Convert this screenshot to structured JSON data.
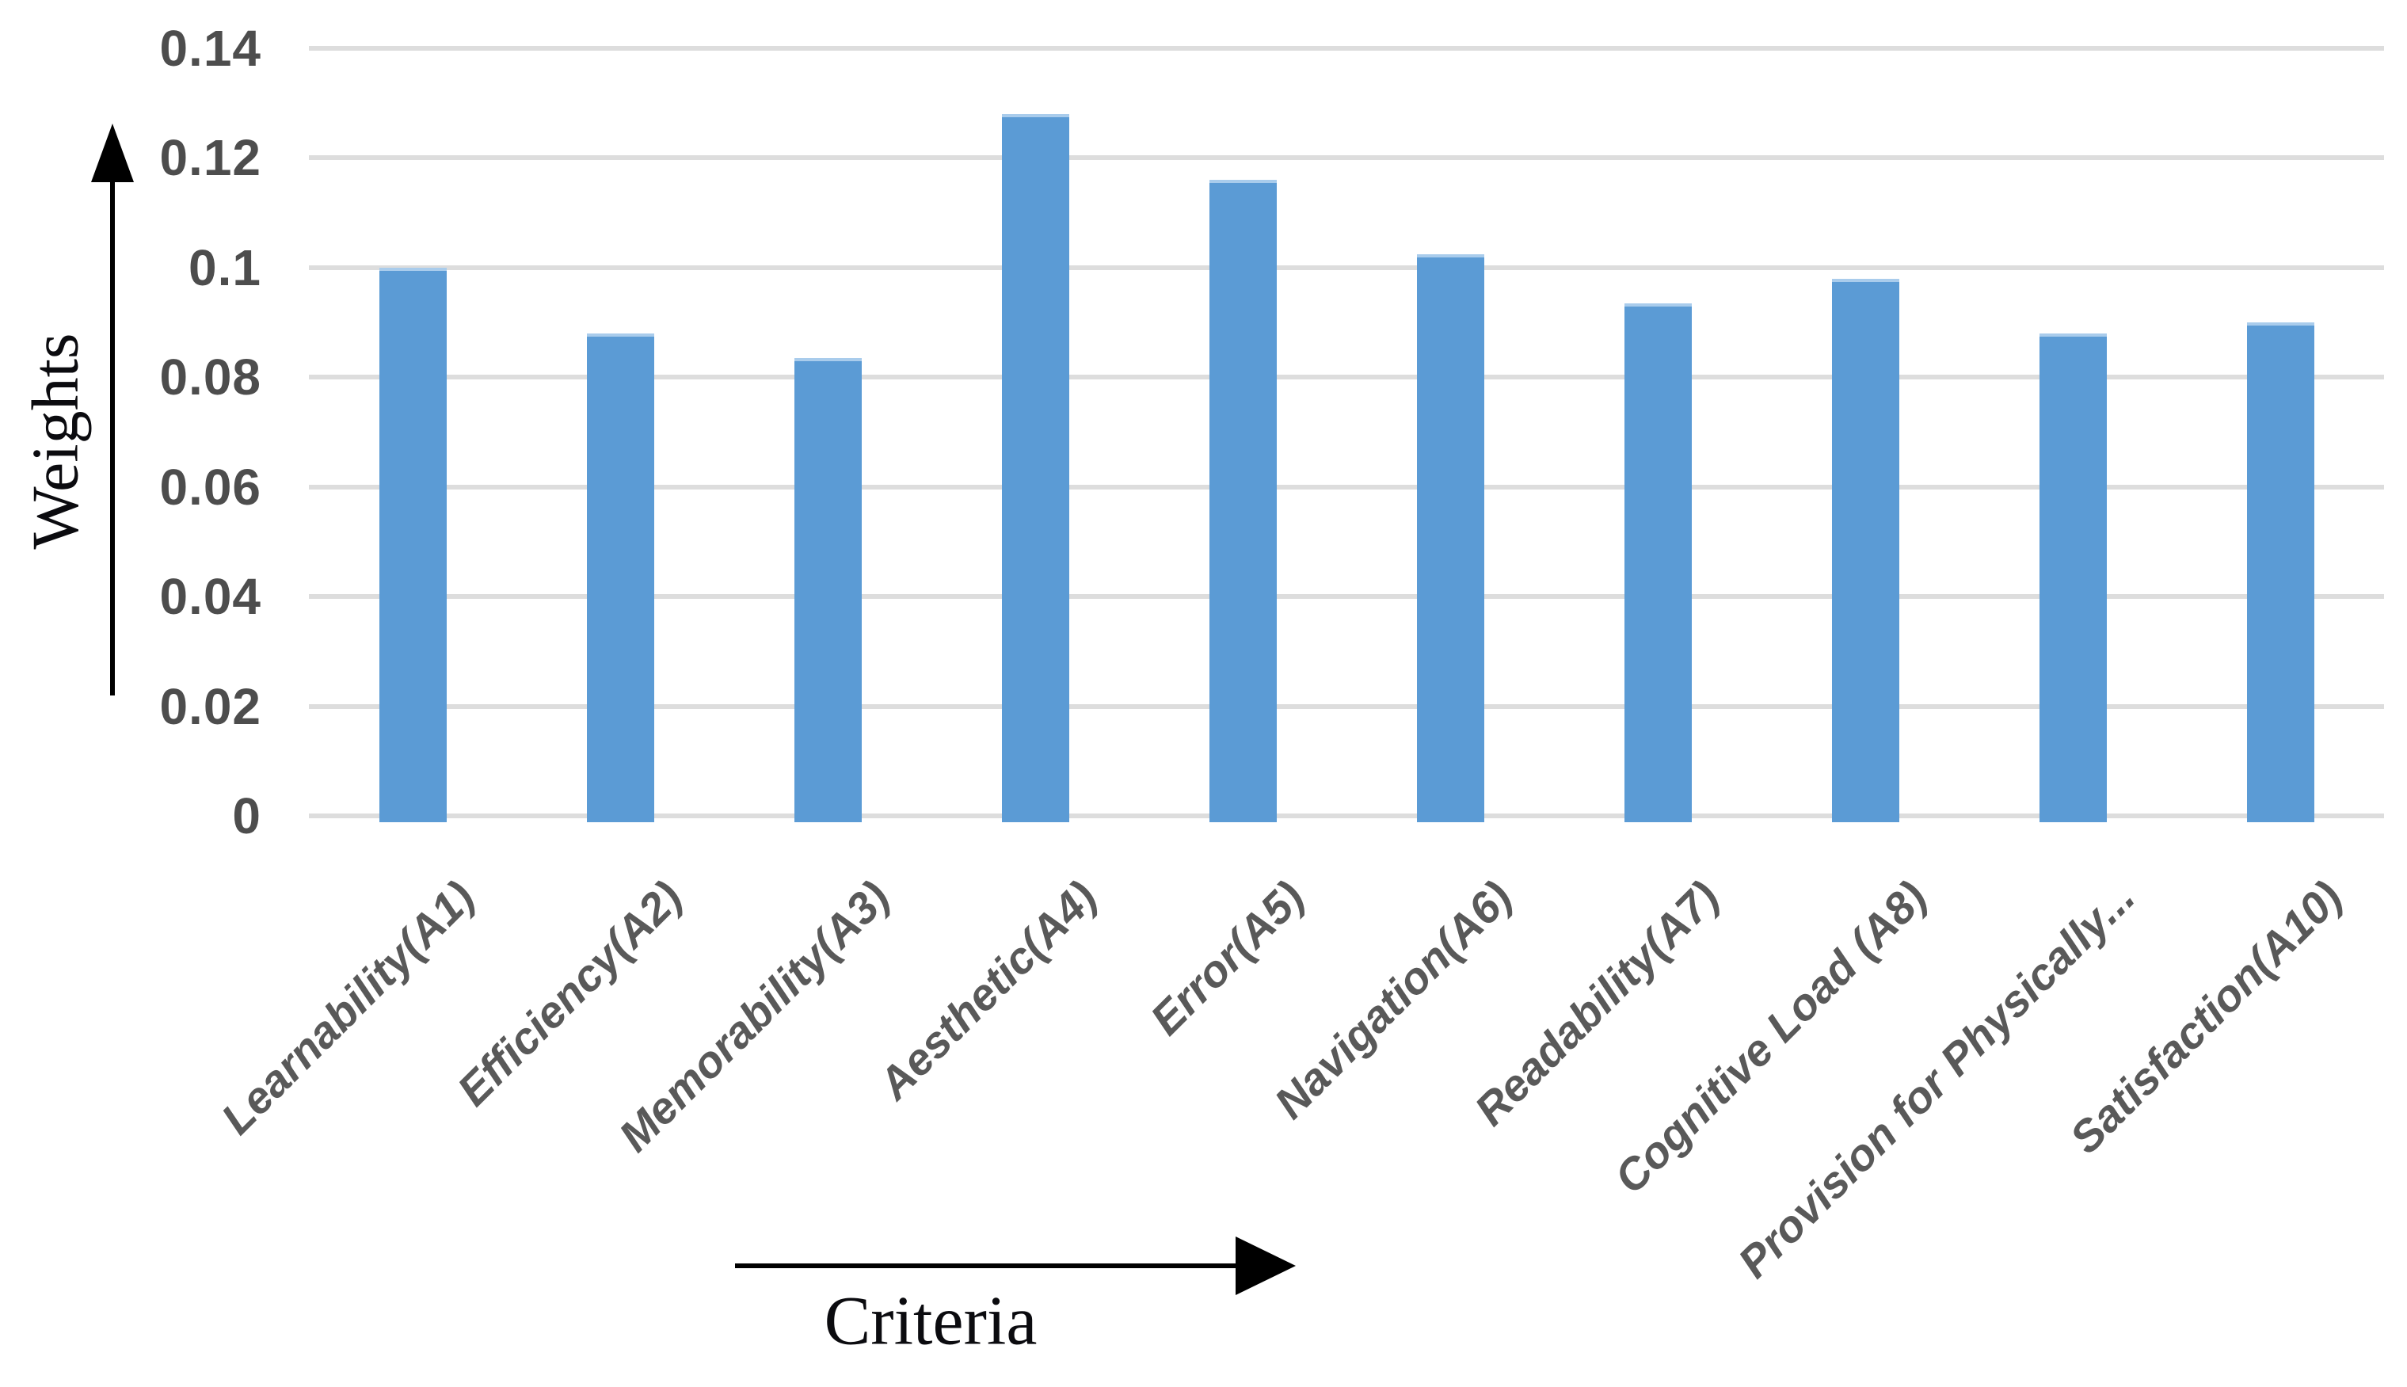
{
  "chart_data": {
    "type": "bar",
    "title": "",
    "xlabel": "Criteria",
    "ylabel": "Weights",
    "categories": [
      "Learnability(A1)",
      "Efficiency(A2)",
      "Memorability(A3)",
      "Aesthetic(A4)",
      "Error(A5)",
      "Navigation(A6)",
      "Readability(A7)",
      "Cognitive Load (A8)",
      "Provision for Physically...",
      "Satisfaction(A10)"
    ],
    "values": [
      0.1005,
      0.0885,
      0.084,
      0.1285,
      0.1165,
      0.103,
      0.094,
      0.0985,
      0.0885,
      0.0905
    ],
    "series_name": "Weights",
    "ylim": [
      0,
      0.14
    ],
    "ytick_interval": 0.02,
    "ytick_labels": [
      "0",
      "0.02",
      "0.04",
      "0.06",
      "0.08",
      "0.1",
      "0.12",
      "0.14"
    ],
    "grid": "horizontal",
    "legend": "none",
    "colors": {
      "bar_fill": "#5B9BD5",
      "bar_top_edge": "#A9CCEC",
      "gridline": "#DDDDDD",
      "tick_label": "#4D4D4D",
      "category_label": "#595959",
      "axis_title": "#0B0B0F",
      "arrow": "#000000",
      "background": "#FFFFFF"
    }
  }
}
